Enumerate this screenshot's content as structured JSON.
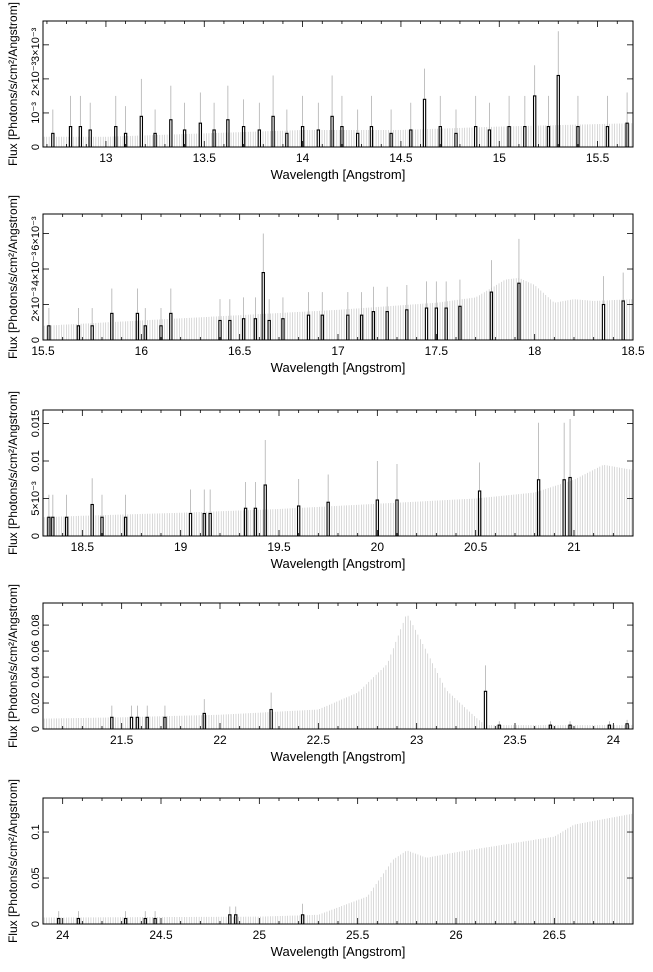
{
  "chart_data": [
    {
      "type": "bar",
      "xlabel": "Wavelength [Angstrom]",
      "ylabel": "Flux [Photons/s/cm²/Angstrom]",
      "xlim": [
        12.68,
        15.68
      ],
      "ylim": [
        0,
        0.0037
      ],
      "x_ticks": [
        13,
        13.5,
        14,
        14.5,
        15,
        15.5
      ],
      "x_tick_labels": [
        "13",
        "13.5",
        "14",
        "14.5",
        "15",
        "15.5"
      ],
      "y_ticks": [
        0,
        0.001,
        0.002,
        0.003
      ],
      "y_tick_labels": [
        "0",
        "10⁻³",
        "2×10⁻³",
        "3×10⁻³"
      ],
      "model": {
        "x": [
          12.68,
          13.0,
          13.5,
          14.0,
          14.5,
          15.0,
          15.68
        ],
        "y": [
          0.0003,
          0.0003,
          0.0004,
          0.0005,
          0.0005,
          0.0006,
          0.0007
        ]
      },
      "data": {
        "x": [
          12.73,
          12.82,
          12.87,
          12.92,
          13.05,
          13.1,
          13.18,
          13.25,
          13.33,
          13.4,
          13.48,
          13.55,
          13.62,
          13.7,
          13.78,
          13.85,
          13.92,
          14.0,
          14.08,
          14.15,
          14.2,
          14.28,
          14.35,
          14.45,
          14.55,
          14.62,
          14.7,
          14.78,
          14.88,
          14.95,
          15.05,
          15.13,
          15.18,
          15.25,
          15.3,
          15.4,
          15.55,
          15.65
        ],
        "y": [
          0.0004,
          0.0006,
          0.0006,
          0.0005,
          0.0006,
          0.0004,
          0.0009,
          0.0004,
          0.0008,
          0.0005,
          0.0007,
          0.0005,
          0.0008,
          0.0006,
          0.0005,
          0.0009,
          0.0004,
          0.0006,
          0.0005,
          0.0009,
          0.0006,
          0.0004,
          0.0006,
          0.0004,
          0.0005,
          0.0014,
          0.0006,
          0.0004,
          0.0006,
          0.0005,
          0.0006,
          0.0006,
          0.0015,
          0.0006,
          0.0021,
          0.0006,
          0.0006,
          0.0007
        ],
        "err": [
          0.0007,
          0.0009,
          0.0009,
          0.0008,
          0.0009,
          0.0008,
          0.0011,
          0.0007,
          0.001,
          0.0008,
          0.0009,
          0.0008,
          0.001,
          0.0008,
          0.0008,
          0.0012,
          0.0007,
          0.0009,
          0.0008,
          0.0012,
          0.0009,
          0.0007,
          0.0009,
          0.0007,
          0.0008,
          0.0009,
          0.0009,
          0.0007,
          0.0009,
          0.0008,
          0.0009,
          0.0009,
          0.0009,
          0.0009,
          0.0013,
          0.0009,
          0.0009,
          0.0009
        ]
      }
    },
    {
      "type": "bar",
      "xlabel": "Wavelength [Angstrom]",
      "ylabel": "Flux [Photons/s/cm²/Angstrom]",
      "xlim": [
        15.5,
        18.5
      ],
      "ylim": [
        0,
        0.0071
      ],
      "x_ticks": [
        15.5,
        16,
        16.5,
        17,
        17.5,
        18,
        18.5
      ],
      "x_tick_labels": [
        "15.5",
        "16",
        "16.5",
        "17",
        "17.5",
        "18",
        "18.5"
      ],
      "y_ticks": [
        0,
        0.002,
        0.004,
        0.006
      ],
      "y_tick_labels": [
        "0",
        "2×10⁻³",
        "4×10⁻³",
        "6×10⁻³"
      ],
      "model": {
        "x": [
          15.5,
          16.0,
          16.5,
          17.0,
          17.5,
          17.7,
          17.85,
          17.92,
          18.0,
          18.1,
          18.2,
          18.3,
          18.5
        ],
        "y": [
          0.0008,
          0.0011,
          0.0014,
          0.0017,
          0.0021,
          0.0024,
          0.0034,
          0.0035,
          0.0031,
          0.0021,
          0.0023,
          0.0022,
          0.0023
        ]
      },
      "data": {
        "x": [
          15.53,
          15.68,
          15.75,
          15.85,
          15.98,
          16.02,
          16.1,
          16.15,
          16.4,
          16.45,
          16.52,
          16.58,
          16.62,
          16.65,
          16.72,
          16.85,
          16.92,
          17.05,
          17.12,
          17.18,
          17.25,
          17.35,
          17.45,
          17.5,
          17.55,
          17.62,
          17.78,
          17.92,
          18.35,
          18.45
        ],
        "y": [
          0.0008,
          0.0008,
          0.0008,
          0.0015,
          0.0015,
          0.0008,
          0.0008,
          0.0015,
          0.0011,
          0.0011,
          0.0012,
          0.0012,
          0.0038,
          0.0011,
          0.0012,
          0.0014,
          0.0014,
          0.0014,
          0.0014,
          0.0016,
          0.0016,
          0.0017,
          0.0018,
          0.0018,
          0.0018,
          0.0019,
          0.0027,
          0.0032,
          0.002,
          0.0022
        ],
        "err": [
          0.001,
          0.001,
          0.001,
          0.0014,
          0.0014,
          0.001,
          0.001,
          0.0014,
          0.0012,
          0.0012,
          0.0012,
          0.0012,
          0.0022,
          0.0012,
          0.0012,
          0.0013,
          0.0013,
          0.0013,
          0.0013,
          0.0014,
          0.0014,
          0.0014,
          0.0015,
          0.0015,
          0.0015,
          0.0015,
          0.0018,
          0.0025,
          0.0016,
          0.0016
        ]
      }
    },
    {
      "type": "bar",
      "xlabel": "Wavelength [Angstrom]",
      "ylabel": "Flux [Photons/s/cm²/Angstrom]",
      "xlim": [
        18.3,
        21.3
      ],
      "ylim": [
        0,
        0.0168
      ],
      "x_ticks": [
        18.5,
        19,
        19.5,
        20,
        20.5,
        21
      ],
      "x_tick_labels": [
        "18.5",
        "19",
        "19.5",
        "20",
        "20.5",
        "21"
      ],
      "y_ticks": [
        0,
        0.005,
        0.01,
        0.015
      ],
      "y_tick_labels": [
        "0",
        "5×10⁻³",
        "0.01",
        "0.015"
      ],
      "model": {
        "x": [
          18.3,
          18.5,
          19.0,
          19.5,
          20.0,
          20.5,
          20.8,
          21.0,
          21.15,
          21.3
        ],
        "y": [
          0.0025,
          0.0027,
          0.0031,
          0.0036,
          0.0043,
          0.005,
          0.0058,
          0.0075,
          0.0095,
          0.0088
        ]
      },
      "data": {
        "x": [
          18.33,
          18.35,
          18.42,
          18.55,
          18.6,
          18.72,
          19.05,
          19.12,
          19.15,
          19.33,
          19.38,
          19.43,
          19.6,
          19.75,
          20.0,
          20.1,
          20.52,
          20.82,
          20.95,
          20.98
        ],
        "y": [
          0.0025,
          0.0025,
          0.0025,
          0.0042,
          0.0025,
          0.0025,
          0.003,
          0.003,
          0.003,
          0.0037,
          0.0037,
          0.0068,
          0.004,
          0.0045,
          0.0048,
          0.0048,
          0.006,
          0.0075,
          0.0075,
          0.0078
        ],
        "err": [
          0.003,
          0.003,
          0.003,
          0.0035,
          0.003,
          0.003,
          0.0032,
          0.0032,
          0.0032,
          0.0035,
          0.0035,
          0.006,
          0.0036,
          0.0037,
          0.0052,
          0.0048,
          0.0038,
          0.0076,
          0.0076,
          0.0078
        ]
      }
    },
    {
      "type": "bar",
      "xlabel": "Wavelength [Angstrom]",
      "ylabel": "Flux [Photons/s/cm²/Angstrom]",
      "xlim": [
        21.1,
        24.1
      ],
      "ylim": [
        0,
        0.097
      ],
      "x_ticks": [
        21.5,
        22,
        22.5,
        23,
        23.5,
        24
      ],
      "x_tick_labels": [
        "21.5",
        "22",
        "22.5",
        "23",
        "23.5",
        "24"
      ],
      "y_ticks": [
        0,
        0.02,
        0.04,
        0.06,
        0.08
      ],
      "y_tick_labels": [
        "0",
        "0.02",
        "0.04",
        "0.06",
        "0.08"
      ],
      "model": {
        "x": [
          21.1,
          21.5,
          22.0,
          22.5,
          22.7,
          22.85,
          22.95,
          23.05,
          23.15,
          23.3,
          23.35,
          23.5,
          24.1
        ],
        "y": [
          0.008,
          0.009,
          0.011,
          0.015,
          0.028,
          0.05,
          0.089,
          0.06,
          0.03,
          0.009,
          0.003,
          0.003,
          0.003
        ]
      },
      "data": {
        "x": [
          21.45,
          21.55,
          21.58,
          21.63,
          21.72,
          21.92,
          22.26,
          23.35,
          23.42,
          23.68,
          23.78,
          23.98,
          24.07
        ],
        "y": [
          0.009,
          0.009,
          0.009,
          0.009,
          0.009,
          0.012,
          0.015,
          0.029,
          0.003,
          0.003,
          0.003,
          0.003,
          0.004
        ],
        "err": [
          0.009,
          0.009,
          0.009,
          0.009,
          0.009,
          0.011,
          0.013,
          0.02,
          0.003,
          0.003,
          0.003,
          0.003,
          0.003
        ]
      }
    },
    {
      "type": "bar",
      "xlabel": "Wavelength [Angstrom]",
      "ylabel": "Flux [Photons/s/cm²/Angstrom]",
      "xlim": [
        23.9,
        26.9
      ],
      "ylim": [
        0,
        0.137
      ],
      "x_ticks": [
        24,
        24.5,
        25,
        25.5,
        26,
        26.5
      ],
      "x_tick_labels": [
        "24",
        "24.5",
        "25",
        "25.5",
        "26",
        "26.5"
      ],
      "y_ticks": [
        0,
        0.05,
        0.1
      ],
      "y_tick_labels": [
        "0",
        "0.05",
        "0.1"
      ],
      "model": {
        "x": [
          23.9,
          25.0,
          25.3,
          25.55,
          25.68,
          25.75,
          25.85,
          26.0,
          26.5,
          26.6,
          26.9
        ],
        "y": [
          0.007,
          0.008,
          0.01,
          0.03,
          0.07,
          0.08,
          0.072,
          0.078,
          0.095,
          0.108,
          0.12
        ]
      },
      "data": {
        "x": [
          23.98,
          24.08,
          24.32,
          24.42,
          24.47,
          24.85,
          24.88,
          25.22
        ],
        "y": [
          0.006,
          0.006,
          0.006,
          0.006,
          0.006,
          0.01,
          0.01,
          0.01
        ],
        "err": [
          0.008,
          0.008,
          0.008,
          0.008,
          0.008,
          0.009,
          0.009,
          0.012
        ]
      }
    }
  ]
}
